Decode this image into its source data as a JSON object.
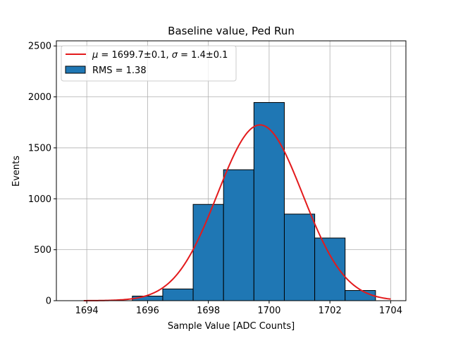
{
  "chart_data": {
    "type": "bar",
    "title": "Baseline value, Ped Run",
    "xlabel": "Sample Value [ADC Counts]",
    "ylabel": "Events",
    "xlim": [
      1693,
      1704.5
    ],
    "ylim": [
      0,
      2550
    ],
    "grid": true,
    "x_ticks": [
      "1694",
      "1696",
      "1698",
      "1700",
      "1702",
      "1704"
    ],
    "y_ticks": [
      "0",
      "500",
      "1000",
      "1500",
      "2000",
      "2500"
    ],
    "x_tick_values": [
      1694,
      1696,
      1698,
      1700,
      1702,
      1704
    ],
    "y_tick_values": [
      0,
      500,
      1000,
      1500,
      2000,
      2500
    ],
    "histogram": {
      "bin_edges": [
        1693.5,
        1694.5,
        1695.5,
        1696.5,
        1697.5,
        1698.5,
        1699.5,
        1700.5,
        1701.5,
        1702.5,
        1703.5
      ],
      "counts": [
        0,
        0,
        45,
        115,
        945,
        1285,
        1945,
        850,
        615,
        100
      ],
      "color": "#1f77b4",
      "edge_color": "#000000"
    },
    "fit": {
      "mu": 1699.7,
      "sigma": 1.4,
      "amplitude": 1725,
      "x_range": [
        1693.9,
        1704.0
      ],
      "color": "#e31a1c"
    },
    "legend": {
      "position": "top-left",
      "entries": [
        {
          "label_prefix": "μ",
          "label_mid": " = 1699.7±0.1, ",
          "label_sigma": "σ",
          "label_suffix": " = 1.4±0.1",
          "kind": "line"
        },
        {
          "label": "RMS = 1.38",
          "kind": "patch"
        }
      ]
    }
  }
}
